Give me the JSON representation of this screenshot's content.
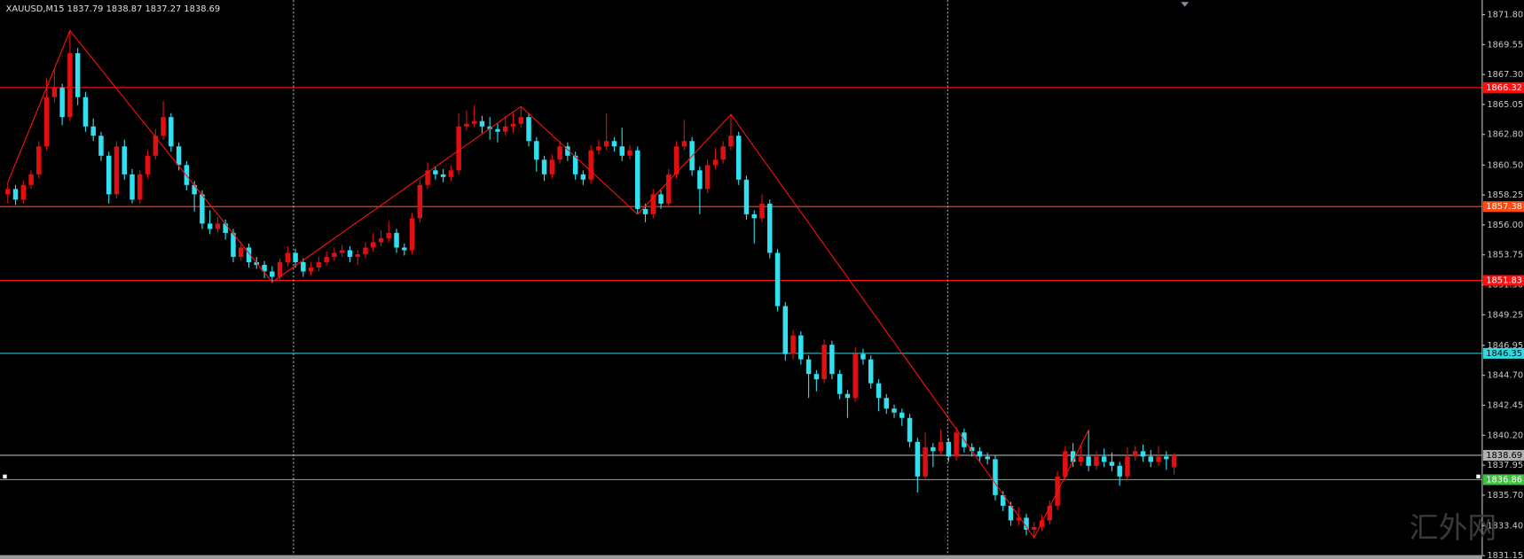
{
  "chart_data": {
    "type": "candlestick",
    "title": "XAUUSD,M15  1837.79 1838.87 1837.27 1838.69",
    "watermark": "汇外网",
    "bull_color": "#e01010",
    "bear_color": "#30e0f0",
    "grid": false,
    "ylim": [
      1830.9,
      1872.9
    ],
    "yticks": [
      {
        "value": 1871.8,
        "label": "1871.80"
      },
      {
        "value": 1869.55,
        "label": "1869.55"
      },
      {
        "value": 1867.3,
        "label": "1867.30"
      },
      {
        "value": 1865.05,
        "label": "1865.05"
      },
      {
        "value": 1862.8,
        "label": "1862.80"
      },
      {
        "value": 1860.5,
        "label": "1860.50"
      },
      {
        "value": 1858.25,
        "label": "1858.25"
      },
      {
        "value": 1856,
        "label": "1856.00"
      },
      {
        "value": 1853.75,
        "label": "1853.75"
      },
      {
        "value": 1851.5,
        "label": "1851.50"
      },
      {
        "value": 1849.25,
        "label": "1849.25"
      },
      {
        "value": 1846.95,
        "label": "1846.95"
      },
      {
        "value": 1844.7,
        "label": "1844.70"
      },
      {
        "value": 1842.45,
        "label": "1842.45"
      },
      {
        "value": 1840.2,
        "label": "1840.20"
      },
      {
        "value": 1837.95,
        "label": "1837.95"
      },
      {
        "value": 1835.7,
        "label": "1835.70"
      },
      {
        "value": 1833.4,
        "label": "1833.40"
      },
      {
        "value": 1831.15,
        "label": "1831.15"
      }
    ],
    "levels": [
      {
        "value": 1866.32,
        "color": "#ff1010"
      },
      {
        "value": 1857.38,
        "color": "#ff4a10"
      },
      {
        "value": 1851.83,
        "color": "#ff1010"
      },
      {
        "value": 1846.35,
        "color": "#30d8e0"
      },
      {
        "value": 1838.69,
        "color": "#b0b0b0"
      },
      {
        "value": 1836.86,
        "color": "#40c040"
      }
    ],
    "zigzag": {
      "color": "#ff1010",
      "x": [
        0,
        8,
        34,
        66,
        81,
        93,
        132,
        139
      ],
      "values": [
        1859.2,
        1870.6,
        1851.7,
        1864.9,
        1856.8,
        1864.3,
        1832.5,
        1840.6
      ]
    },
    "ohlc": [
      [
        1858.3,
        1859.2,
        1857.6,
        1858.7
      ],
      [
        1858.7,
        1859.0,
        1857.5,
        1857.9
      ],
      [
        1857.9,
        1859.3,
        1857.6,
        1859.0
      ],
      [
        1859.0,
        1860.1,
        1858.7,
        1859.8
      ],
      [
        1859.8,
        1862.3,
        1859.5,
        1861.9
      ],
      [
        1861.9,
        1867.0,
        1861.6,
        1865.6
      ],
      [
        1865.6,
        1867.7,
        1865.2,
        1866.3
      ],
      [
        1866.3,
        1866.6,
        1863.5,
        1864.1
      ],
      [
        1864.1,
        1870.6,
        1863.8,
        1868.9
      ],
      [
        1868.9,
        1869.3,
        1865.0,
        1865.6
      ],
      [
        1865.6,
        1866.0,
        1863.0,
        1863.4
      ],
      [
        1863.4,
        1864.0,
        1862.3,
        1862.7
      ],
      [
        1862.7,
        1863.0,
        1860.8,
        1861.2
      ],
      [
        1861.2,
        1861.5,
        1857.6,
        1858.3
      ],
      [
        1858.3,
        1862.3,
        1858.0,
        1861.9
      ],
      [
        1861.9,
        1862.4,
        1859.4,
        1859.8
      ],
      [
        1859.8,
        1860.2,
        1857.6,
        1857.9
      ],
      [
        1857.9,
        1860.1,
        1857.6,
        1859.8
      ],
      [
        1859.8,
        1861.6,
        1859.5,
        1861.2
      ],
      [
        1861.2,
        1863.2,
        1860.9,
        1862.7
      ],
      [
        1862.7,
        1865.3,
        1862.4,
        1864.1
      ],
      [
        1864.1,
        1864.4,
        1861.5,
        1861.9
      ],
      [
        1861.9,
        1862.2,
        1860.1,
        1860.5
      ],
      [
        1860.5,
        1860.8,
        1858.6,
        1859.0
      ],
      [
        1859.0,
        1859.3,
        1857.0,
        1858.3
      ],
      [
        1858.3,
        1858.6,
        1855.7,
        1856.1
      ],
      [
        1856.1,
        1857.1,
        1855.3,
        1855.7
      ],
      [
        1855.7,
        1856.6,
        1855.4,
        1856.1
      ],
      [
        1856.1,
        1856.4,
        1854.9,
        1855.4
      ],
      [
        1855.4,
        1855.7,
        1853.2,
        1853.6
      ],
      [
        1853.6,
        1854.7,
        1853.3,
        1854.3
      ],
      [
        1854.3,
        1854.6,
        1852.8,
        1853.2
      ],
      [
        1853.2,
        1853.6,
        1852.7,
        1853.0
      ],
      [
        1853.0,
        1853.3,
        1852.0,
        1852.5
      ],
      [
        1852.5,
        1852.9,
        1851.7,
        1852.1
      ],
      [
        1852.1,
        1853.5,
        1851.8,
        1853.2
      ],
      [
        1853.2,
        1854.4,
        1852.9,
        1853.9
      ],
      [
        1853.9,
        1854.2,
        1852.8,
        1853.2
      ],
      [
        1853.2,
        1853.5,
        1852.1,
        1852.5
      ],
      [
        1852.5,
        1853.2,
        1852.2,
        1852.8
      ],
      [
        1852.8,
        1853.6,
        1852.5,
        1853.2
      ],
      [
        1853.2,
        1854.0,
        1852.9,
        1853.6
      ],
      [
        1853.6,
        1854.3,
        1853.3,
        1853.9
      ],
      [
        1853.9,
        1854.5,
        1853.6,
        1854.1
      ],
      [
        1854.1,
        1854.4,
        1853.2,
        1853.6
      ],
      [
        1853.6,
        1854.1,
        1853.0,
        1853.8
      ],
      [
        1853.8,
        1854.7,
        1853.5,
        1854.3
      ],
      [
        1854.3,
        1855.4,
        1854.0,
        1854.7
      ],
      [
        1854.7,
        1855.6,
        1854.4,
        1855.0
      ],
      [
        1855.0,
        1856.3,
        1854.7,
        1855.4
      ],
      [
        1855.4,
        1855.7,
        1853.9,
        1854.3
      ],
      [
        1854.3,
        1854.6,
        1853.7,
        1854.1
      ],
      [
        1854.1,
        1856.9,
        1853.8,
        1856.5
      ],
      [
        1856.5,
        1859.4,
        1856.2,
        1859.0
      ],
      [
        1859.0,
        1860.7,
        1858.7,
        1860.1
      ],
      [
        1860.1,
        1860.4,
        1859.4,
        1859.8
      ],
      [
        1859.8,
        1860.2,
        1859.2,
        1859.6
      ],
      [
        1859.6,
        1860.5,
        1859.3,
        1860.1
      ],
      [
        1860.1,
        1864.4,
        1859.8,
        1863.4
      ],
      [
        1863.4,
        1864.6,
        1863.1,
        1863.6
      ],
      [
        1863.6,
        1865.0,
        1863.3,
        1863.8
      ],
      [
        1863.8,
        1864.2,
        1862.9,
        1863.4
      ],
      [
        1863.4,
        1864.1,
        1862.4,
        1863.2
      ],
      [
        1863.2,
        1863.6,
        1862.2,
        1863.0
      ],
      [
        1863.0,
        1864.2,
        1862.7,
        1863.4
      ],
      [
        1863.4,
        1864.4,
        1862.9,
        1863.6
      ],
      [
        1863.6,
        1864.9,
        1863.3,
        1864.1
      ],
      [
        1864.1,
        1864.4,
        1861.9,
        1862.3
      ],
      [
        1862.3,
        1862.6,
        1860.0,
        1860.9
      ],
      [
        1860.9,
        1861.2,
        1859.3,
        1859.8
      ],
      [
        1859.8,
        1861.3,
        1859.5,
        1860.9
      ],
      [
        1860.9,
        1862.3,
        1860.6,
        1861.9
      ],
      [
        1861.9,
        1862.2,
        1860.8,
        1861.2
      ],
      [
        1861.2,
        1861.5,
        1859.4,
        1859.8
      ],
      [
        1859.8,
        1860.1,
        1859.0,
        1859.4
      ],
      [
        1859.4,
        1862.0,
        1859.1,
        1861.6
      ],
      [
        1861.6,
        1862.4,
        1861.3,
        1861.9
      ],
      [
        1861.9,
        1864.4,
        1861.6,
        1862.3
      ],
      [
        1862.3,
        1862.6,
        1861.5,
        1861.9
      ],
      [
        1861.9,
        1863.3,
        1860.8,
        1861.2
      ],
      [
        1861.2,
        1862.0,
        1860.9,
        1861.6
      ],
      [
        1861.6,
        1861.9,
        1856.8,
        1857.2
      ],
      [
        1857.2,
        1857.6,
        1856.2,
        1856.8
      ],
      [
        1856.8,
        1858.7,
        1856.5,
        1858.3
      ],
      [
        1858.3,
        1858.6,
        1857.2,
        1857.6
      ],
      [
        1857.6,
        1860.2,
        1857.3,
        1859.8
      ],
      [
        1859.8,
        1862.3,
        1859.5,
        1861.9
      ],
      [
        1861.9,
        1863.9,
        1861.6,
        1862.3
      ],
      [
        1862.3,
        1862.6,
        1859.7,
        1860.1
      ],
      [
        1860.1,
        1860.4,
        1856.8,
        1858.7
      ],
      [
        1858.7,
        1860.9,
        1858.4,
        1860.5
      ],
      [
        1860.5,
        1861.8,
        1860.2,
        1860.9
      ],
      [
        1860.9,
        1862.3,
        1860.6,
        1861.9
      ],
      [
        1861.9,
        1864.3,
        1861.6,
        1862.7
      ],
      [
        1862.7,
        1863.0,
        1859.0,
        1859.4
      ],
      [
        1859.4,
        1859.7,
        1856.4,
        1856.8
      ],
      [
        1856.8,
        1857.1,
        1854.6,
        1856.5
      ],
      [
        1856.5,
        1858.3,
        1856.2,
        1857.6
      ],
      [
        1857.6,
        1857.9,
        1853.5,
        1853.9
      ],
      [
        1853.9,
        1854.2,
        1849.5,
        1849.9
      ],
      [
        1849.9,
        1850.2,
        1845.8,
        1846.3
      ],
      [
        1846.3,
        1848.1,
        1845.9,
        1847.7
      ],
      [
        1847.7,
        1848.0,
        1845.5,
        1845.9
      ],
      [
        1845.9,
        1846.2,
        1843.0,
        1844.8
      ],
      [
        1844.8,
        1845.1,
        1843.5,
        1844.4
      ],
      [
        1844.4,
        1847.4,
        1844.1,
        1847.0
      ],
      [
        1847.0,
        1847.3,
        1844.4,
        1844.8
      ],
      [
        1844.8,
        1845.1,
        1842.9,
        1843.3
      ],
      [
        1843.3,
        1843.6,
        1841.5,
        1843.0
      ],
      [
        1843.0,
        1846.8,
        1842.7,
        1846.3
      ],
      [
        1846.3,
        1846.7,
        1845.5,
        1845.9
      ],
      [
        1845.9,
        1846.2,
        1843.7,
        1844.1
      ],
      [
        1844.1,
        1844.4,
        1842.0,
        1843.0
      ],
      [
        1843.0,
        1843.3,
        1841.8,
        1842.2
      ],
      [
        1842.2,
        1842.5,
        1841.5,
        1841.9
      ],
      [
        1841.9,
        1842.2,
        1840.9,
        1841.5
      ],
      [
        1841.5,
        1841.8,
        1839.3,
        1839.7
      ],
      [
        1839.7,
        1840.0,
        1835.9,
        1837.1
      ],
      [
        1837.1,
        1840.4,
        1836.8,
        1839.3
      ],
      [
        1839.3,
        1839.6,
        1837.8,
        1839.0
      ],
      [
        1839.0,
        1840.6,
        1838.7,
        1839.7
      ],
      [
        1839.7,
        1840.0,
        1838.2,
        1838.6
      ],
      [
        1838.6,
        1840.8,
        1838.3,
        1840.4
      ],
      [
        1840.4,
        1840.7,
        1838.9,
        1839.3
      ],
      [
        1839.3,
        1839.6,
        1838.6,
        1839.0
      ],
      [
        1839.0,
        1839.3,
        1838.2,
        1838.6
      ],
      [
        1838.6,
        1838.9,
        1838.0,
        1838.4
      ],
      [
        1838.4,
        1838.7,
        1835.3,
        1835.7
      ],
      [
        1835.7,
        1836.0,
        1834.5,
        1834.9
      ],
      [
        1834.9,
        1835.2,
        1833.4,
        1833.8
      ],
      [
        1833.8,
        1834.8,
        1833.4,
        1834.0
      ],
      [
        1834.0,
        1834.3,
        1832.7,
        1833.1
      ],
      [
        1833.1,
        1833.7,
        1832.5,
        1833.3
      ],
      [
        1833.3,
        1834.2,
        1833.0,
        1833.8
      ],
      [
        1833.8,
        1835.3,
        1833.5,
        1834.9
      ],
      [
        1834.9,
        1837.5,
        1834.6,
        1837.1
      ],
      [
        1837.1,
        1839.4,
        1836.8,
        1839.0
      ],
      [
        1839.0,
        1839.6,
        1837.8,
        1838.2
      ],
      [
        1838.2,
        1839.5,
        1837.9,
        1838.6
      ],
      [
        1838.6,
        1840.6,
        1837.5,
        1837.9
      ],
      [
        1837.9,
        1839.0,
        1837.6,
        1838.6
      ],
      [
        1838.6,
        1839.2,
        1837.8,
        1838.2
      ],
      [
        1838.2,
        1838.9,
        1837.5,
        1837.9
      ],
      [
        1837.9,
        1838.2,
        1836.4,
        1837.1
      ],
      [
        1837.1,
        1839.3,
        1836.8,
        1838.6
      ],
      [
        1838.6,
        1839.4,
        1838.3,
        1839.0
      ],
      [
        1839.0,
        1839.5,
        1838.2,
        1838.6
      ],
      [
        1838.6,
        1839.1,
        1837.8,
        1838.2
      ],
      [
        1838.2,
        1839.4,
        1837.9,
        1838.6
      ],
      [
        1838.6,
        1839.0,
        1837.6,
        1838.4
      ],
      [
        1837.79,
        1838.87,
        1837.27,
        1838.69
      ]
    ]
  }
}
